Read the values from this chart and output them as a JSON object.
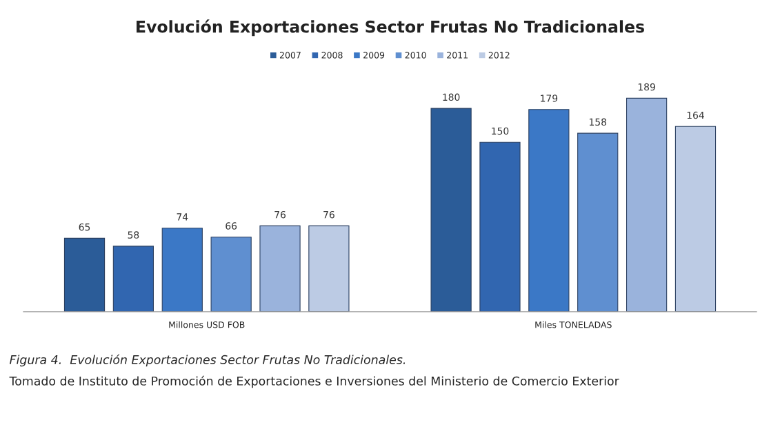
{
  "chart_data": {
    "type": "bar",
    "title": "Evolución Exportaciones Sector Frutas No Tradicionales",
    "categories": [
      "Millones USD FOB",
      "Miles TONELADAS"
    ],
    "series": [
      {
        "name": "2007",
        "color": "#2b5c98",
        "values": [
          65,
          180
        ]
      },
      {
        "name": "2008",
        "color": "#3166b0",
        "values": [
          58,
          150
        ]
      },
      {
        "name": "2009",
        "color": "#3b78c6",
        "values": [
          74,
          179
        ]
      },
      {
        "name": "2010",
        "color": "#5f8fd0",
        "values": [
          66,
          158
        ]
      },
      {
        "name": "2011",
        "color": "#9ab3dc",
        "values": [
          76,
          189
        ]
      },
      {
        "name": "2012",
        "color": "#bccbe4",
        "values": [
          76,
          164
        ]
      }
    ],
    "data_labels": true,
    "legend": "top",
    "grid": false,
    "annotations": [
      "Figura 4.  Evolución Exportaciones Sector Frutas No Tradicionales.",
      "Tomado de Instituto de Promoción de Exportaciones e Inversiones del Ministerio de Comercio Exterior"
    ]
  }
}
